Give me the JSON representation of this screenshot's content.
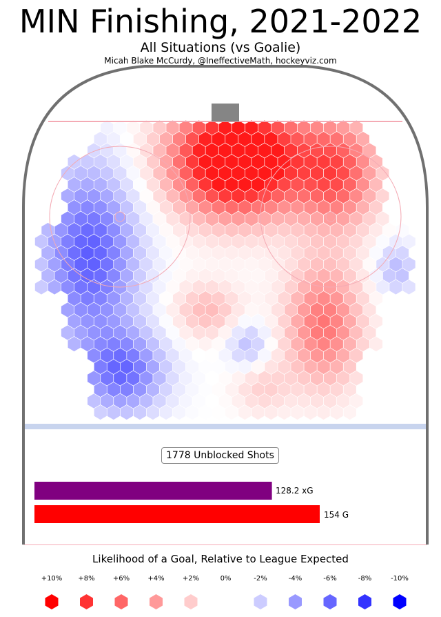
{
  "title": "MIN Finishing, 2021-2022",
  "subtitle": "All Situations (vs Goalie)",
  "credit": "Micah Blake McCurdy, @IneffectiveMath, hockeyviz.com",
  "chart_data": [
    {
      "type": "heatmap",
      "shape": "hexbin",
      "description_of_values": "relative finishing vs league expected (percent), by shot location",
      "regions": [
        {
          "zone": "slot-and-crease",
          "value": 10
        },
        {
          "zone": "right-side-high",
          "value": 7
        },
        {
          "zone": "right-circle",
          "value": 4
        },
        {
          "zone": "center-mid",
          "value": 3
        },
        {
          "zone": "left-circle",
          "value": -4
        },
        {
          "zone": "left-point",
          "value": -5
        },
        {
          "zone": "right-point-edge",
          "value": -3
        }
      ]
    },
    {
      "type": "bar",
      "categories": [
        "xG",
        "G"
      ],
      "values": [
        128.2,
        154
      ],
      "labels": [
        "128.2 xG",
        "154 G"
      ],
      "colors": [
        "#800080",
        "#ff0000"
      ],
      "annotation": "1778 Unblocked Shots"
    }
  ],
  "legend": {
    "title": "Likelihood of a Goal, Relative to League Expected",
    "ticks": [
      "+10%",
      "+8%",
      "+6%",
      "+4%",
      "+2%",
      "0%",
      "-2%",
      "-4%",
      "-6%",
      "-8%",
      "-10%"
    ],
    "values": [
      10,
      8,
      6,
      4,
      2,
      0,
      -2,
      -4,
      -6,
      -8,
      -10
    ]
  },
  "colors": {
    "positive_max": "#ff0000",
    "negative_max": "#0000ff",
    "neutral": "#ffffff",
    "board": "#707070",
    "goal_line": "#f4aab4",
    "blue_line": "#c8d4ee"
  }
}
